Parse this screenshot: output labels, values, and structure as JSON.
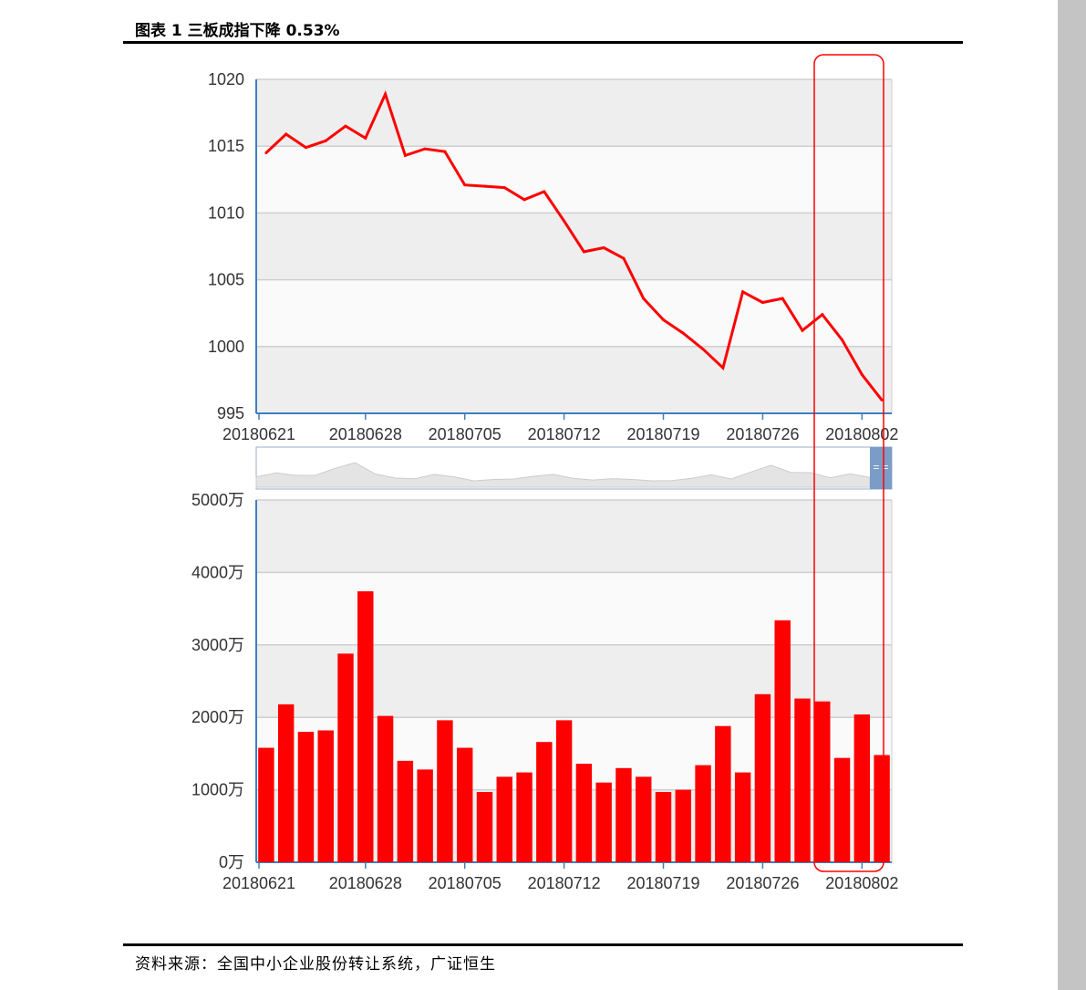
{
  "header": {
    "title": "图表 1 三板成指下降 0.53%"
  },
  "footer": {
    "source": "资料来源：全国中小企业股份转让系统，广证恒生"
  },
  "colors": {
    "series": "#ff0000",
    "band_dark": "#eeeeee",
    "band_light": "#fafafa",
    "axis": "#3f7fbf",
    "highlight": "#ff0000",
    "slider": "#7a9cc6"
  },
  "chart_data": [
    {
      "type": "line",
      "title": "",
      "x": [
        "20180621",
        "20180622",
        "20180625",
        "20180626",
        "20180627",
        "20180628",
        "20180629",
        "20180702",
        "20180703",
        "20180704",
        "20180705",
        "20180706",
        "20180709",
        "20180710",
        "20180711",
        "20180712",
        "20180713",
        "20180716",
        "20180717",
        "20180718",
        "20180719",
        "20180720",
        "20180723",
        "20180724",
        "20180725",
        "20180726",
        "20180727",
        "20180730",
        "20180731",
        "20180801",
        "20180802",
        "20180803"
      ],
      "x_ticks": [
        "20180621",
        "20180628",
        "20180705",
        "20180712",
        "20180719",
        "20180726",
        "20180802"
      ],
      "values": [
        1014.5,
        1015.9,
        1014.9,
        1015.4,
        1016.5,
        1015.6,
        1018.9,
        1014.3,
        1014.8,
        1014.6,
        1012.1,
        1012.0,
        1011.9,
        1011.0,
        1011.6,
        1009.4,
        1007.1,
        1007.4,
        1006.6,
        1003.6,
        1002.0,
        1001.0,
        999.8,
        998.4,
        1004.1,
        1003.3,
        1003.6,
        1001.2,
        1002.4,
        1000.5,
        997.9,
        996.0
      ],
      "y_ticks": [
        "995",
        "1000",
        "1005",
        "1010",
        "1015",
        "1020"
      ],
      "ylim": [
        995,
        1020
      ],
      "grid": true
    },
    {
      "type": "bar",
      "title": "",
      "x": [
        "20180621",
        "20180622",
        "20180625",
        "20180626",
        "20180627",
        "20180628",
        "20180629",
        "20180702",
        "20180703",
        "20180704",
        "20180705",
        "20180706",
        "20180709",
        "20180710",
        "20180711",
        "20180712",
        "20180713",
        "20180716",
        "20180717",
        "20180718",
        "20180719",
        "20180720",
        "20180723",
        "20180724",
        "20180725",
        "20180726",
        "20180727",
        "20180730",
        "20180731",
        "20180801",
        "20180802",
        "20180803"
      ],
      "x_ticks": [
        "20180621",
        "20180628",
        "20180705",
        "20180712",
        "20180719",
        "20180726",
        "20180802"
      ],
      "values": [
        1580,
        2180,
        1800,
        1820,
        2880,
        3740,
        2020,
        1400,
        1280,
        1960,
        1580,
        970,
        1180,
        1240,
        1660,
        1960,
        1360,
        1100,
        1300,
        1180,
        970,
        1000,
        1340,
        1880,
        1240,
        2320,
        3340,
        2260,
        2220,
        1440,
        2040,
        1480
      ],
      "y_ticks": [
        "0万",
        "1000万",
        "2000万",
        "3000万",
        "4000万",
        "5000万"
      ],
      "ylim": [
        0,
        5000
      ],
      "grid": true
    }
  ],
  "navigator": {
    "handle_label": "= ="
  }
}
